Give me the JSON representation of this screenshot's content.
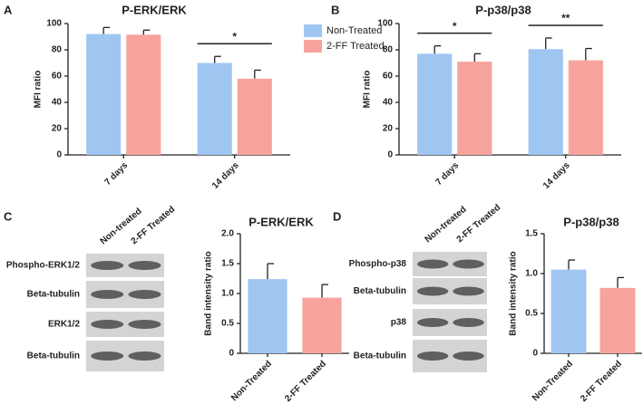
{
  "chart_data": [
    {
      "type": "bar",
      "panel": "A",
      "title": "P-ERK/ERK",
      "y_label": "MFI ratio",
      "categories": [
        "7 days",
        "14 days"
      ],
      "series": [
        {
          "name": "Non-Treated",
          "color": "#9fc5f1",
          "values": [
            92,
            70
          ],
          "errors": [
            5,
            5
          ]
        },
        {
          "name": "2-FF Treated",
          "color": "#f7a39d",
          "values": [
            91.5,
            58
          ],
          "errors": [
            3.5,
            6.5
          ]
        }
      ],
      "significance": [
        null,
        "*"
      ],
      "ylim": [
        0,
        100
      ],
      "yticks": [
        0,
        20,
        40,
        60,
        80,
        100
      ],
      "legend": "right"
    },
    {
      "type": "bar",
      "panel": "B",
      "title": "P-p38/p38",
      "y_label": "MFI ratio",
      "categories": [
        "7 days",
        "14 days"
      ],
      "series": [
        {
          "name": "Non-Treated",
          "color": "#9fc5f1",
          "values": [
            77,
            80.5
          ],
          "errors": [
            6,
            8.5
          ]
        },
        {
          "name": "2-FF Treated",
          "color": "#f7a39d",
          "values": [
            71,
            72
          ],
          "errors": [
            6,
            9
          ]
        }
      ],
      "significance": [
        "*",
        "**"
      ],
      "ylim": [
        0,
        100
      ],
      "yticks": [
        0,
        20,
        40,
        60,
        80,
        100
      ]
    },
    {
      "type": "bar",
      "panel": "C",
      "title": "P-ERK/ERK",
      "y_label": "Band intensity ratio",
      "categories": [
        "Non-Treated",
        "2-FF Treated"
      ],
      "values": [
        1.24,
        0.93
      ],
      "errors": [
        0.26,
        0.22
      ],
      "colors": [
        "#9fc5f1",
        "#f7a39d"
      ],
      "ylim": [
        0,
        2
      ],
      "yticks": [
        0,
        0.5,
        {
          "value": 1,
          "label": "1.0"
        },
        1.5,
        {
          "value": 2,
          "label": "2.0"
        }
      ]
    },
    {
      "type": "bar",
      "panel": "D",
      "title": "P-p38/p38",
      "y_label": "Band intensity ratio",
      "categories": [
        "Non-Treated",
        "2-FF Treated"
      ],
      "values": [
        1.05,
        0.82
      ],
      "errors": [
        0.12,
        0.13
      ],
      "colors": [
        "#9fc5f1",
        "#f7a39d"
      ],
      "ylim": [
        0,
        1.5
      ],
      "yticks": [
        0,
        0.5,
        {
          "value": 1,
          "label": "1.0"
        },
        1.5
      ]
    }
  ],
  "blots": [
    {
      "columns": [
        "Non-treated",
        "2-FF Treated"
      ],
      "rows": [
        "Phospho-ERK1/2",
        "Beta-tubulin",
        "ERK1/2",
        "Beta-tubulin"
      ]
    },
    {
      "columns": [
        "Non-treated",
        "2-FF Treated"
      ],
      "rows": [
        "Phospho-p38",
        "Beta-tubulin",
        "p38",
        "Beta-tubulin"
      ]
    }
  ]
}
